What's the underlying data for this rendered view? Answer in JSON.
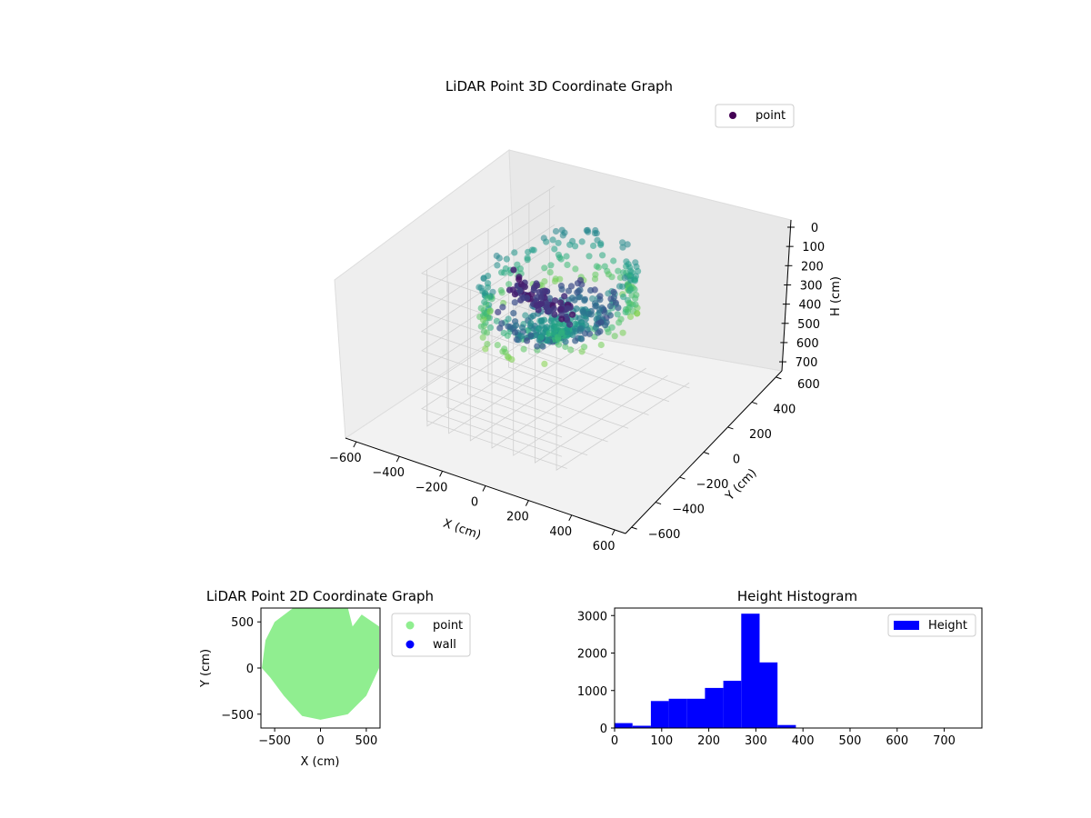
{
  "chart_data": [
    {
      "type": "scatter3d",
      "title": "LiDAR Point 3D Coordinate Graph",
      "xlabel": "X (cm)",
      "ylabel": "Y (cm)",
      "zlabel": "H (cm)",
      "xlim": [
        -650,
        650
      ],
      "ylim": [
        -650,
        650
      ],
      "zlim": [
        0,
        780
      ],
      "z_inverted": true,
      "xticks": [
        -600,
        -400,
        -200,
        0,
        200,
        400,
        600
      ],
      "yticks": [
        -600,
        -400,
        -200,
        0,
        200,
        400,
        600
      ],
      "zticks": [
        0,
        100,
        200,
        300,
        400,
        500,
        600,
        700
      ],
      "colormap": "viridis",
      "legend": {
        "entries": [
          "point"
        ],
        "placement": "top-right"
      },
      "grid": true
    },
    {
      "type": "scatter",
      "title": "LiDAR Point 2D Coordinate Graph",
      "xlabel": "X (cm)",
      "ylabel": "Y (cm)",
      "xlim": [
        -650,
        650
      ],
      "ylim": [
        -650,
        650
      ],
      "xticks": [
        -500,
        0,
        500
      ],
      "yticks": [
        -500,
        0,
        500
      ],
      "series": [
        {
          "name": "point",
          "color": "#90ee90"
        },
        {
          "name": "wall",
          "color": "#0000ff"
        }
      ],
      "legend": {
        "entries": [
          "point",
          "wall"
        ],
        "placement": "outside-right"
      }
    },
    {
      "type": "bar",
      "title": "Height Histogram",
      "xlim": [
        0,
        780
      ],
      "ylim": [
        0,
        3200
      ],
      "xticks": [
        0,
        100,
        200,
        300,
        400,
        500,
        600,
        700
      ],
      "yticks": [
        0,
        1000,
        2000,
        3000
      ],
      "bin_edges": [
        0,
        38,
        77,
        115,
        154,
        192,
        231,
        269,
        308,
        346,
        385,
        423,
        462,
        500,
        538,
        577,
        615,
        654,
        692,
        731,
        769
      ],
      "series": [
        {
          "name": "Height",
          "color": "#0000ff",
          "values": [
            130,
            60,
            720,
            780,
            780,
            1070,
            1260,
            3050,
            1750,
            80,
            5,
            0,
            0,
            0,
            0,
            0,
            0,
            0,
            0,
            0
          ]
        }
      ],
      "legend": {
        "entries": [
          "Height"
        ],
        "placement": "top-right"
      }
    }
  ]
}
